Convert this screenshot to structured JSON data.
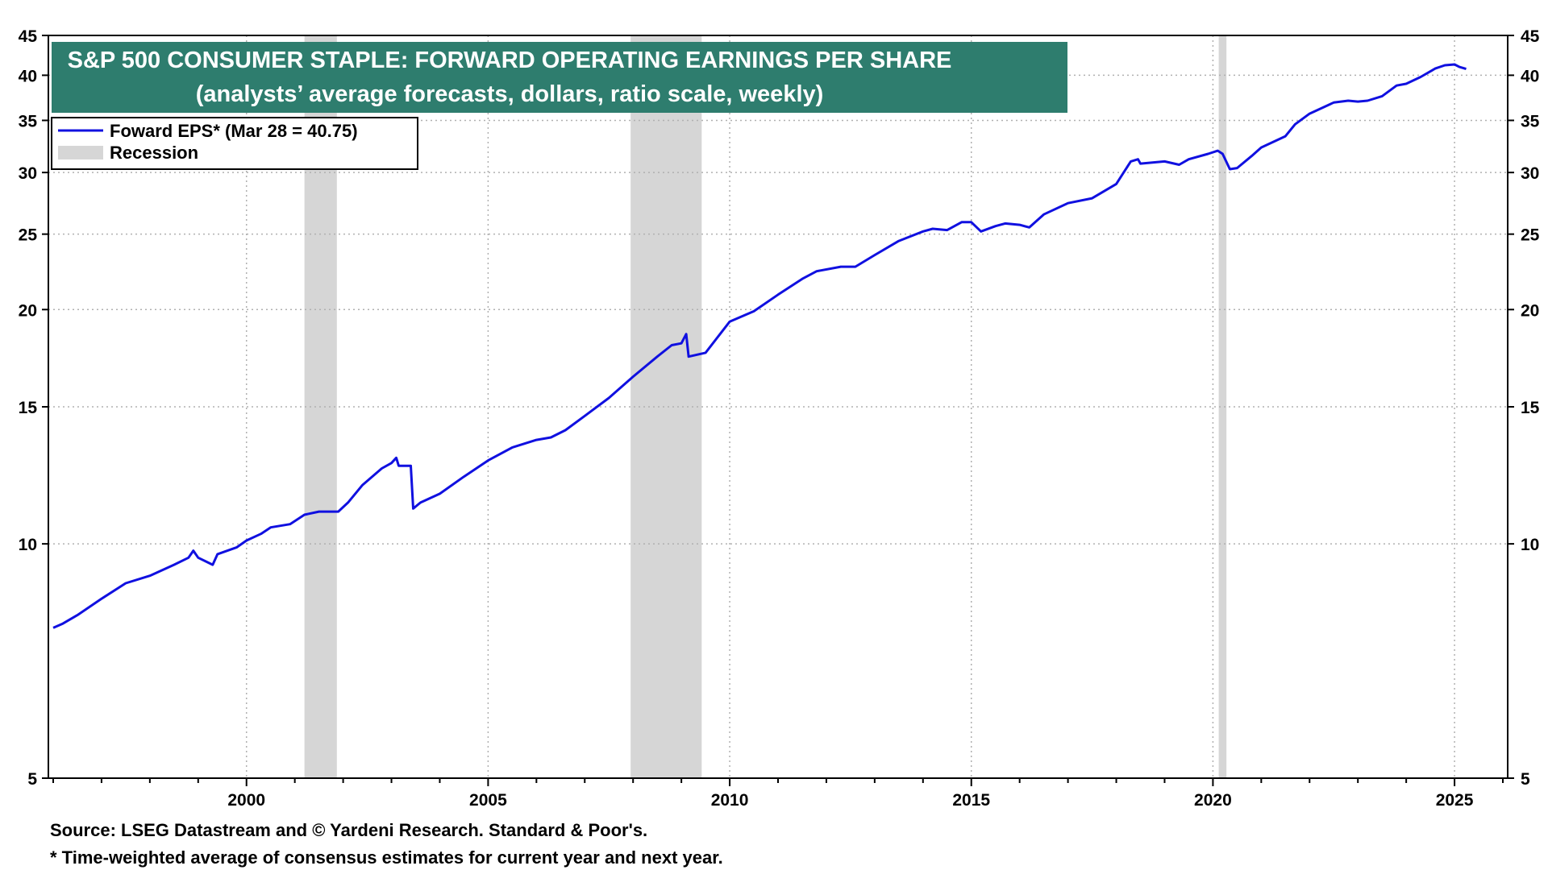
{
  "chart_data": {
    "type": "line",
    "title": "S&P 500 CONSUMER STAPLE: FORWARD OPERATING EARNINGS PER SHARE",
    "subtitle": "(analysts’ average forecasts, dollars, ratio scale, weekly)",
    "xlabel": "",
    "ylabel": "",
    "xlim": [
      1995.9,
      2026.1
    ],
    "ylim": [
      5,
      45
    ],
    "y_scale": "log",
    "y_ticks": [
      5,
      10,
      15,
      20,
      25,
      30,
      35,
      40,
      45
    ],
    "x_ticks": [
      2000,
      2005,
      2010,
      2015,
      2020,
      2025
    ],
    "grid": true,
    "legend": [
      {
        "label": "Foward EPS* (Mar 28 = 40.75)",
        "kind": "line",
        "color": "#1010e0"
      },
      {
        "label": "Recession",
        "kind": "band",
        "color": "#d6d6d6"
      }
    ],
    "legend_position": "top-left",
    "recessions": [
      [
        2001.2,
        2001.87
      ],
      [
        2007.95,
        2009.42
      ],
      [
        2020.12,
        2020.28
      ]
    ],
    "series": [
      {
        "name": "Foward EPS* (Mar 28 = 40.75)",
        "color": "#1010e0",
        "points": [
          [
            1996.0,
            7.8
          ],
          [
            1996.2,
            7.9
          ],
          [
            1996.5,
            8.1
          ],
          [
            1997.0,
            8.5
          ],
          [
            1997.5,
            8.9
          ],
          [
            1998.0,
            9.1
          ],
          [
            1998.5,
            9.4
          ],
          [
            1998.8,
            9.6
          ],
          [
            1998.9,
            9.8
          ],
          [
            1999.0,
            9.6
          ],
          [
            1999.3,
            9.4
          ],
          [
            1999.4,
            9.7
          ],
          [
            1999.8,
            9.9
          ],
          [
            2000.0,
            10.1
          ],
          [
            2000.3,
            10.3
          ],
          [
            2000.5,
            10.5
          ],
          [
            2000.9,
            10.6
          ],
          [
            2001.2,
            10.9
          ],
          [
            2001.5,
            11.0
          ],
          [
            2001.9,
            11.0
          ],
          [
            2002.1,
            11.3
          ],
          [
            2002.4,
            11.9
          ],
          [
            2002.8,
            12.5
          ],
          [
            2003.0,
            12.7
          ],
          [
            2003.1,
            12.9
          ],
          [
            2003.15,
            12.6
          ],
          [
            2003.4,
            12.6
          ],
          [
            2003.45,
            11.1
          ],
          [
            2003.6,
            11.3
          ],
          [
            2004.0,
            11.6
          ],
          [
            2004.5,
            12.2
          ],
          [
            2005.0,
            12.8
          ],
          [
            2005.5,
            13.3
          ],
          [
            2006.0,
            13.6
          ],
          [
            2006.3,
            13.7
          ],
          [
            2006.6,
            14.0
          ],
          [
            2007.0,
            14.6
          ],
          [
            2007.5,
            15.4
          ],
          [
            2008.0,
            16.4
          ],
          [
            2008.5,
            17.4
          ],
          [
            2008.8,
            18.0
          ],
          [
            2009.0,
            18.1
          ],
          [
            2009.1,
            18.6
          ],
          [
            2009.15,
            17.4
          ],
          [
            2009.5,
            17.6
          ],
          [
            2009.8,
            18.6
          ],
          [
            2010.0,
            19.3
          ],
          [
            2010.5,
            19.9
          ],
          [
            2011.0,
            20.9
          ],
          [
            2011.5,
            21.9
          ],
          [
            2011.8,
            22.4
          ],
          [
            2012.3,
            22.7
          ],
          [
            2012.6,
            22.7
          ],
          [
            2013.0,
            23.5
          ],
          [
            2013.5,
            24.5
          ],
          [
            2014.0,
            25.2
          ],
          [
            2014.2,
            25.4
          ],
          [
            2014.5,
            25.3
          ],
          [
            2014.8,
            25.9
          ],
          [
            2015.0,
            25.9
          ],
          [
            2015.2,
            25.2
          ],
          [
            2015.5,
            25.6
          ],
          [
            2015.7,
            25.8
          ],
          [
            2016.0,
            25.7
          ],
          [
            2016.2,
            25.5
          ],
          [
            2016.5,
            26.5
          ],
          [
            2017.0,
            27.4
          ],
          [
            2017.5,
            27.8
          ],
          [
            2018.0,
            29.0
          ],
          [
            2018.3,
            31.0
          ],
          [
            2018.45,
            31.2
          ],
          [
            2018.5,
            30.8
          ],
          [
            2019.0,
            31.0
          ],
          [
            2019.3,
            30.7
          ],
          [
            2019.5,
            31.2
          ],
          [
            2019.9,
            31.7
          ],
          [
            2020.1,
            32.0
          ],
          [
            2020.2,
            31.7
          ],
          [
            2020.35,
            30.3
          ],
          [
            2020.5,
            30.4
          ],
          [
            2020.8,
            31.5
          ],
          [
            2021.0,
            32.3
          ],
          [
            2021.5,
            33.4
          ],
          [
            2021.7,
            34.6
          ],
          [
            2022.0,
            35.7
          ],
          [
            2022.5,
            36.9
          ],
          [
            2022.8,
            37.1
          ],
          [
            2023.0,
            37.0
          ],
          [
            2023.2,
            37.1
          ],
          [
            2023.5,
            37.6
          ],
          [
            2023.8,
            38.8
          ],
          [
            2024.0,
            39.0
          ],
          [
            2024.3,
            39.8
          ],
          [
            2024.6,
            40.8
          ],
          [
            2024.8,
            41.2
          ],
          [
            2025.0,
            41.3
          ],
          [
            2025.1,
            41.0
          ],
          [
            2025.24,
            40.75
          ]
        ]
      }
    ],
    "source": "Source: LSEG Datastream and © Yardeni Research. Standard & Poor's.",
    "footnote": "* Time-weighted average of consensus estimates for current year and next year."
  },
  "colors": {
    "title_box": "#2e7d6e",
    "line": "#1010e0",
    "recession": "#d6d6d6",
    "grid": "#b0b0b0"
  }
}
